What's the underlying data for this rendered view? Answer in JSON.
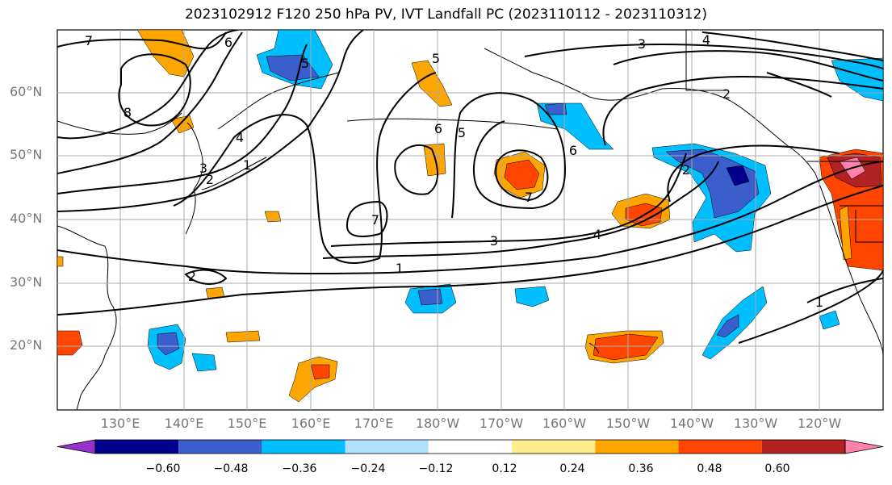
{
  "title": "2023102912 F120 250 hPa PV, IVT Landfall PC (2023110112 - 2023110312)",
  "lat_labels": [
    "60°N",
    "50°N",
    "40°N",
    "30°N",
    "20°N"
  ],
  "lon_labels": [
    "130°E",
    "140°E",
    "150°E",
    "160°E",
    "170°E",
    "180°W",
    "170°W",
    "160°W",
    "150°W",
    "140°W",
    "130°W",
    "120°W"
  ],
  "contour_labels": [
    "7",
    "6",
    "8",
    "5",
    "4",
    "3",
    "2",
    "1",
    "5",
    "6",
    "7",
    "3",
    "4",
    "2",
    "1",
    "6",
    "5",
    "7",
    "3",
    "4",
    "2",
    "1",
    "2"
  ],
  "colorbar": {
    "ticks": [
      "−0.60",
      "−0.48",
      "−0.36",
      "−0.24",
      "−0.12",
      "0.12",
      "0.24",
      "0.36",
      "0.48",
      "0.60"
    ],
    "colors": [
      "#9932CC",
      "#00008B",
      "#3A5FCD",
      "#00BFFF",
      "#B0E2FF",
      "#FFFFFF",
      "#FFEC8B",
      "#FFA500",
      "#FF4500",
      "#B22222",
      "#FF82AB"
    ]
  }
}
